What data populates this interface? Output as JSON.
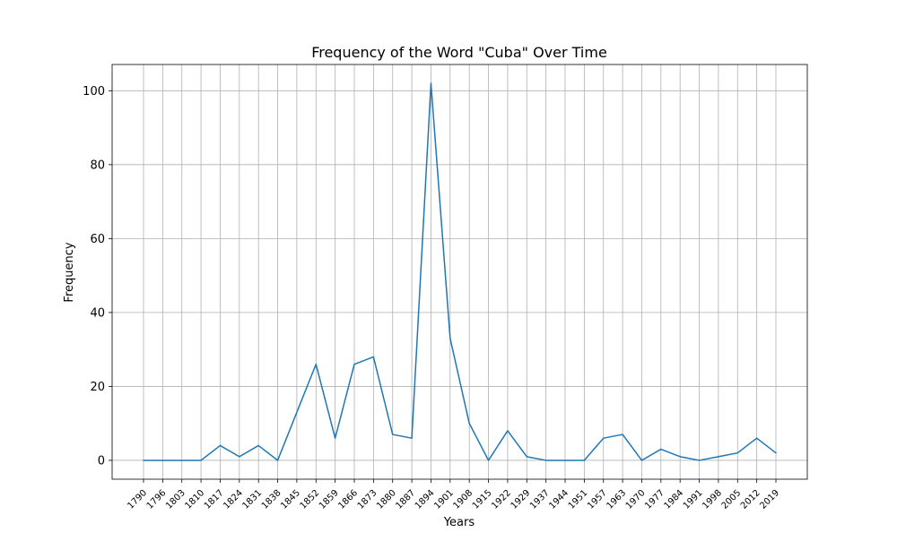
{
  "chart_data": {
    "type": "line",
    "title": "Frequency of the Word \"Cuba\" Over Time",
    "xlabel": "Years",
    "ylabel": "Frequency",
    "x": [
      "1790",
      "1796",
      "1803",
      "1810",
      "1817",
      "1824",
      "1831",
      "1838",
      "1845",
      "1852",
      "1859",
      "1866",
      "1873",
      "1880",
      "1887",
      "1894",
      "1901",
      "1908",
      "1915",
      "1922",
      "1929",
      "1937",
      "1944",
      "1951",
      "1957",
      "1963",
      "1970",
      "1977",
      "1984",
      "1991",
      "1998",
      "2005",
      "2012",
      "2019"
    ],
    "series": [
      {
        "values": [
          0,
          0,
          0,
          0,
          4,
          1,
          4,
          0,
          13,
          26,
          6,
          26,
          28,
          7,
          6,
          102,
          33,
          10,
          0,
          8,
          1,
          0,
          0,
          0,
          6,
          7,
          0,
          3,
          1,
          0,
          1,
          2,
          6,
          2
        ],
        "color": "#1f77b4"
      }
    ],
    "yticks": [
      0,
      20,
      40,
      60,
      80,
      100
    ],
    "ylim": [
      -5.1,
      107.1
    ],
    "grid": true
  }
}
